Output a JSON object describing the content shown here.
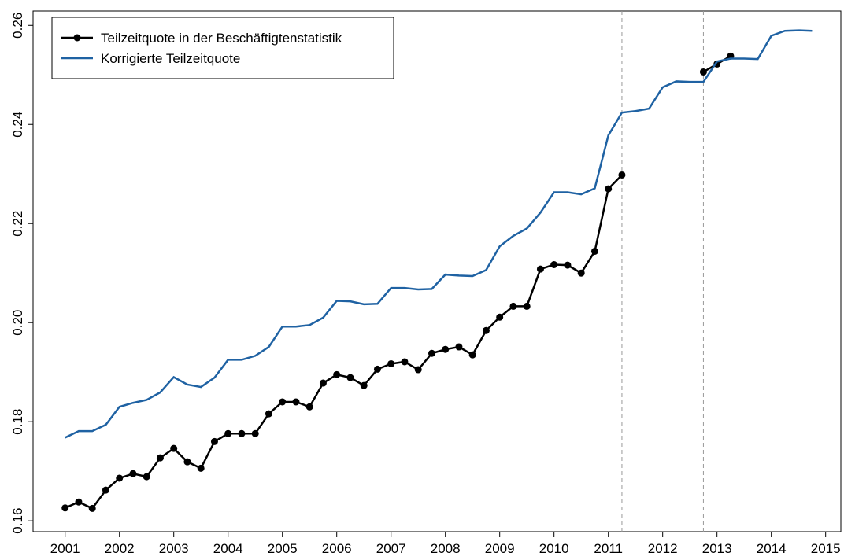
{
  "chart_data": {
    "type": "line",
    "x": [
      2001,
      2001.25,
      2001.5,
      2001.75,
      2002,
      2002.25,
      2002.5,
      2002.75,
      2003,
      2003.25,
      2003.5,
      2003.75,
      2004,
      2004.25,
      2004.5,
      2004.75,
      2005,
      2005.25,
      2005.5,
      2005.75,
      2006,
      2006.25,
      2006.5,
      2006.75,
      2007,
      2007.25,
      2007.5,
      2007.75,
      2008,
      2008.25,
      2008.5,
      2008.75,
      2009,
      2009.25,
      2009.5,
      2009.75,
      2010,
      2010.25,
      2010.5,
      2010.75,
      2011,
      2011.25,
      2011.5,
      2011.75,
      2012,
      2012.25,
      2012.5,
      2012.75,
      2013,
      2013.25,
      2013.5,
      2013.75,
      2014,
      2014.25,
      2014.5,
      2014.75
    ],
    "series": [
      {
        "name": "Teilzeitquote in der Beschäftigtenstatistik",
        "color": "#000000",
        "markers": true,
        "values": [
          0.1626,
          0.1638,
          0.1625,
          0.1662,
          0.1686,
          0.1695,
          0.1689,
          0.1727,
          0.1746,
          0.1719,
          0.1706,
          0.176,
          0.1776,
          0.1776,
          0.1776,
          0.1816,
          0.184,
          0.184,
          0.183,
          0.1878,
          0.1895,
          0.1889,
          0.1873,
          0.1906,
          0.1917,
          0.1921,
          0.1905,
          0.1938,
          0.1946,
          0.1951,
          0.1935,
          0.1984,
          0.2011,
          0.2033,
          0.2033,
          0.2108,
          0.2117,
          0.2116,
          0.21,
          0.2144,
          0.227,
          0.2298,
          null,
          null,
          null,
          null,
          null,
          0.2506,
          0.2522,
          0.2538,
          null,
          null,
          null,
          null,
          null,
          null
        ]
      },
      {
        "name": "Korrigierte Teilzeitquote",
        "color": "#1f62a3",
        "markers": false,
        "values": [
          0.1768,
          0.1781,
          0.1781,
          0.1794,
          0.183,
          0.1838,
          0.1844,
          0.1859,
          0.189,
          0.1875,
          0.187,
          0.1889,
          0.1925,
          0.1925,
          0.1933,
          0.1951,
          0.1992,
          0.1992,
          0.1995,
          0.201,
          0.2044,
          0.2043,
          0.2037,
          0.2038,
          0.207,
          0.207,
          0.2067,
          0.2068,
          0.2097,
          0.2095,
          0.2094,
          0.2106,
          0.2154,
          0.2175,
          0.219,
          0.2222,
          0.2263,
          0.2263,
          0.2259,
          0.2271,
          0.2378,
          0.2424,
          0.2427,
          0.2432,
          0.2475,
          0.2487,
          0.2486,
          0.2486,
          0.2527,
          0.2533,
          0.2533,
          0.2532,
          0.2579,
          0.2589,
          0.259,
          0.2589
        ]
      }
    ],
    "vlines": [
      2011.25,
      2012.75
    ],
    "xlim": [
      2000.41,
      2015.28
    ],
    "ylim": [
      0.1578,
      0.2629
    ],
    "xticks": [
      2001,
      2002,
      2003,
      2004,
      2005,
      2006,
      2007,
      2008,
      2009,
      2010,
      2011,
      2012,
      2013,
      2014,
      2015
    ],
    "yticks": [
      0.16,
      0.18,
      {
        "value": 0.2,
        "label": "0.20"
      },
      0.22,
      0.24,
      0.26
    ],
    "legend": "top-left"
  }
}
